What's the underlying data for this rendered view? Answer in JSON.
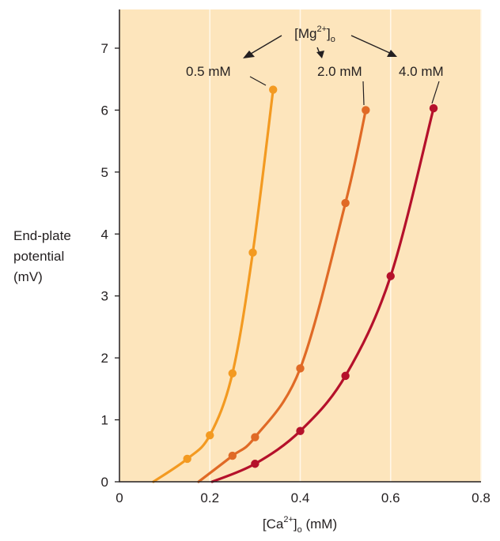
{
  "chart_data": {
    "type": "line",
    "xlabel": "[Ca2+]o (mM)",
    "xlabel_parts": {
      "main": "[Ca",
      "sup": "2+",
      "close": "]",
      "sub": "o",
      "unit": " (mM)"
    },
    "ylabel_lines": [
      "End-plate",
      "potential",
      "(mV)"
    ],
    "xlim": [
      0,
      0.8
    ],
    "ylim": [
      0,
      7.6
    ],
    "x_ticks": [
      0,
      0.2,
      0.4,
      0.6,
      0.8
    ],
    "x_tick_labels": [
      "0",
      "0.2",
      "0.4",
      "0.6",
      "0.8"
    ],
    "y_ticks": [
      0,
      1,
      2,
      3,
      4,
      5,
      6,
      7
    ],
    "y_tick_labels": [
      "0",
      "1",
      "2",
      "3",
      "4",
      "5",
      "6",
      "7"
    ],
    "grid": "vertical",
    "legend_title": "[Mg2+]o",
    "legend_title_parts": {
      "main": "[Mg",
      "sup": "2+",
      "close": "]",
      "sub": "o"
    },
    "series": [
      {
        "name": "0.5 mM",
        "color": "#f39a21",
        "points": [
          [
            0.15,
            0.37
          ],
          [
            0.2,
            0.75
          ],
          [
            0.25,
            1.75
          ],
          [
            0.295,
            3.7
          ],
          [
            0.34,
            6.33
          ]
        ],
        "curve_start": [
          0.075,
          0
        ]
      },
      {
        "name": "2.0 mM",
        "color": "#e06a26",
        "points": [
          [
            0.25,
            0.42
          ],
          [
            0.3,
            0.72
          ],
          [
            0.4,
            1.83
          ],
          [
            0.5,
            4.5
          ],
          [
            0.545,
            6.0
          ]
        ],
        "curve_start": [
          0.175,
          0
        ]
      },
      {
        "name": "4.0 mM",
        "color": "#b5112b",
        "points": [
          [
            0.3,
            0.29
          ],
          [
            0.4,
            0.82
          ],
          [
            0.5,
            1.71
          ],
          [
            0.6,
            3.32
          ],
          [
            0.695,
            6.03
          ]
        ],
        "curve_start": [
          0.205,
          0
        ]
      }
    ],
    "colors": {
      "background": "#fde5bc",
      "grid": "#fff7e8",
      "axis": "#231f20"
    }
  }
}
